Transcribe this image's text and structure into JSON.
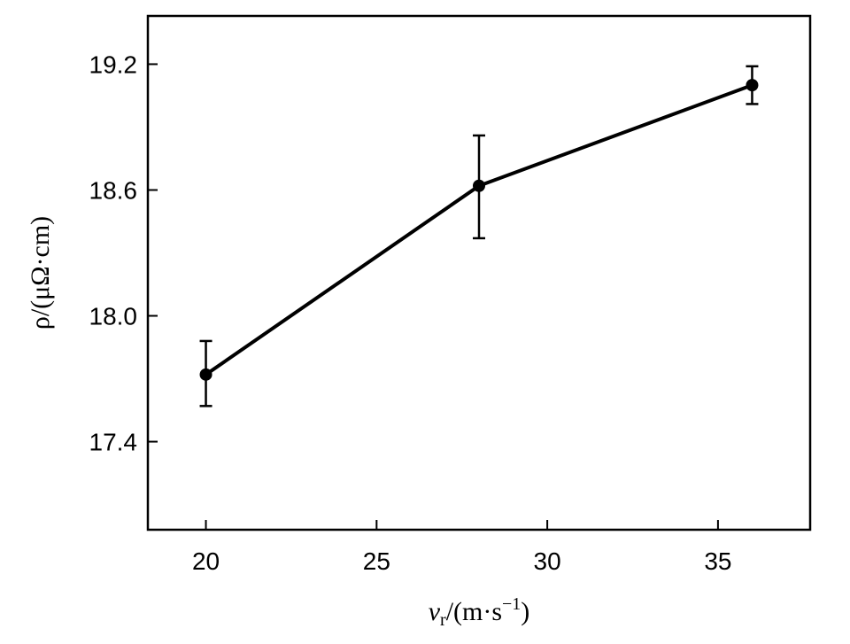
{
  "chart_data": {
    "type": "line",
    "title": "",
    "xlabel": {
      "symbol": "v",
      "subscript": "r",
      "unit": "/(m·s",
      "exponent": "−1",
      "close": ")"
    },
    "ylabel": "ρ/(μΩ·cm)",
    "xlim": [
      18.3,
      37.7
    ],
    "ylim": [
      16.98,
      19.43
    ],
    "xticks": [
      20,
      25,
      30,
      35
    ],
    "xtick_labels": [
      "20",
      "25",
      "30",
      "35"
    ],
    "yticks": [
      17.4,
      18.0,
      18.6,
      19.2
    ],
    "ytick_labels": [
      "17.4",
      "18.0",
      "18.6",
      "19.2"
    ],
    "grid": false,
    "series": [
      {
        "x": [
          20,
          28,
          36
        ],
        "y": [
          17.72,
          18.62,
          19.1
        ],
        "err_low": [
          17.57,
          18.37,
          19.01
        ],
        "err_high": [
          17.88,
          18.86,
          19.19
        ],
        "color": "#000000"
      }
    ]
  }
}
